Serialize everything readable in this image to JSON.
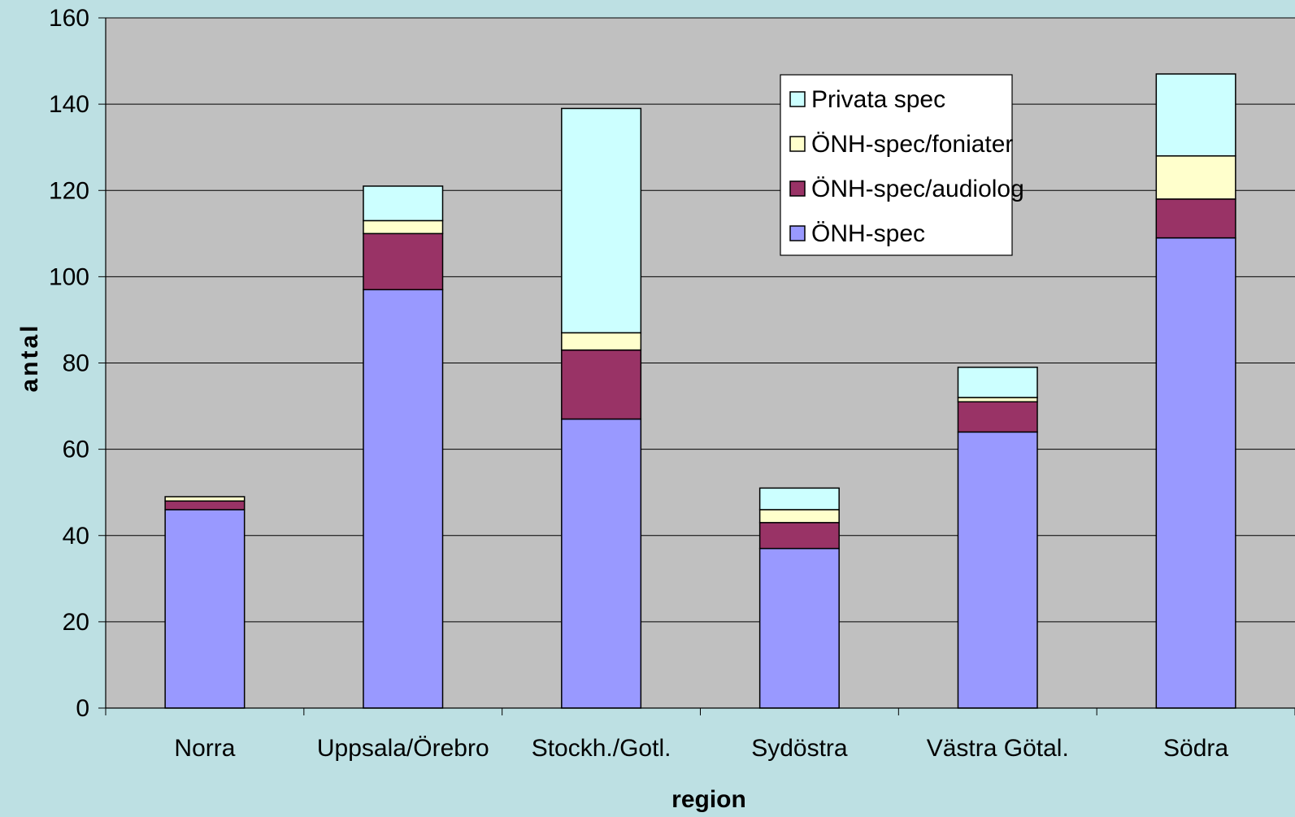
{
  "chart_data": {
    "type": "bar",
    "stacked": true,
    "title": "",
    "xlabel": "region",
    "ylabel": "antal",
    "ylim": [
      0,
      160
    ],
    "yticks": [
      0,
      20,
      40,
      60,
      80,
      100,
      120,
      140,
      160
    ],
    "grid": true,
    "legend_position": "top-right",
    "categories": [
      "Norra",
      "Uppsala/Örebro",
      "Stockh./Gotl.",
      "Sydöstra",
      "Västra Götal.",
      "Södra"
    ],
    "series": [
      {
        "name": "ÖNH-spec",
        "color": "#9999ff",
        "values": [
          46,
          97,
          67,
          37,
          64,
          109
        ]
      },
      {
        "name": "ÖNH-spec/audiolog",
        "color": "#993366",
        "values": [
          2,
          13,
          16,
          6,
          7,
          9
        ]
      },
      {
        "name": "ÖNH-spec/foniater",
        "color": "#ffffcc",
        "values": [
          1,
          3,
          4,
          3,
          1,
          10
        ]
      },
      {
        "name": "Privata spec",
        "color": "#ccffff",
        "values": [
          0,
          8,
          52,
          5,
          7,
          19
        ]
      }
    ],
    "colors": {
      "background": "#bde0e3",
      "plot_area": "#c0c0c0"
    }
  }
}
